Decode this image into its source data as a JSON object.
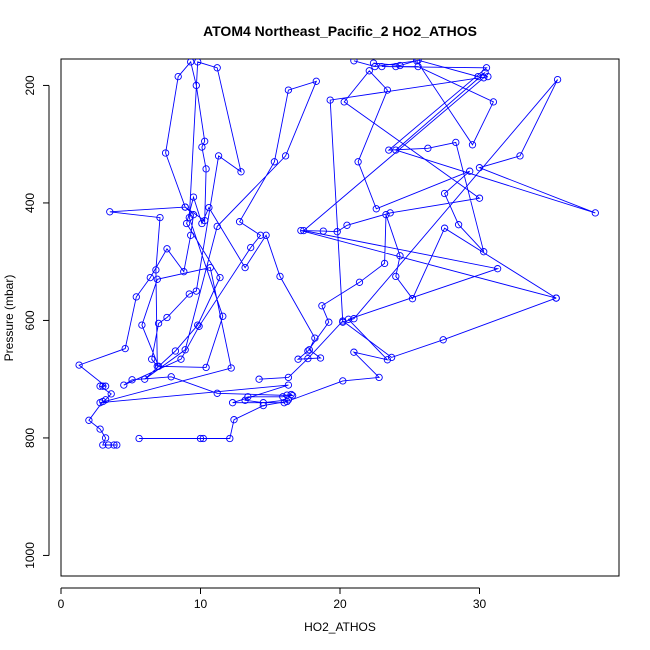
{
  "chart_data": {
    "type": "line",
    "title": "ATOM4 Northeast_Pacific_2 HO2_ATHOS",
    "xlabel": "HO2_ATHOS",
    "ylabel": "Pressure (mbar)",
    "xlim": [
      0,
      40
    ],
    "ylim": [
      1035,
      155
    ],
    "y_reversed": true,
    "x_ticks": [
      0,
      10,
      20,
      30
    ],
    "y_ticks": [
      200,
      400,
      600,
      800,
      1000
    ],
    "marker": "open-circle",
    "series": [
      {
        "color": "#0000ff",
        "points": [
          [
            4.0,
            812
          ],
          [
            3.8,
            812
          ],
          [
            3.4,
            812
          ],
          [
            3.0,
            812
          ],
          [
            3.2,
            800
          ],
          [
            2.8,
            785
          ],
          [
            2.0,
            770
          ],
          [
            3.0,
            738
          ],
          [
            3.2,
            735
          ],
          [
            3.6,
            725
          ],
          [
            2.8,
            712
          ],
          [
            3.0,
            712
          ],
          [
            3.2,
            712
          ],
          [
            1.3,
            676
          ],
          [
            4.6,
            648
          ],
          [
            5.4,
            560
          ],
          [
            6.4,
            527
          ],
          [
            7.6,
            478
          ],
          [
            8.8,
            517
          ],
          [
            9.3,
            455
          ],
          [
            9.5,
            420
          ],
          [
            8.9,
            407
          ],
          [
            7.5,
            315
          ],
          [
            8.4,
            185
          ],
          [
            9.3,
            160
          ],
          [
            9.7,
            200
          ],
          [
            10.3,
            295
          ],
          [
            10.1,
            305
          ],
          [
            10.4,
            342
          ],
          [
            10.3,
            430
          ],
          [
            8.9,
            407
          ],
          [
            3.5,
            415
          ],
          [
            7.1,
            425
          ],
          [
            6.8,
            514
          ],
          [
            6.9,
            678
          ],
          [
            6.5,
            666
          ],
          [
            7.0,
            605
          ],
          [
            7.6,
            595
          ],
          [
            9.2,
            555
          ],
          [
            9.7,
            550
          ],
          [
            11.3,
            320
          ],
          [
            12.9,
            347
          ],
          [
            11.2,
            170
          ],
          [
            9.8,
            160
          ],
          [
            9.2,
            425
          ],
          [
            11.6,
            593
          ],
          [
            10.4,
            680
          ],
          [
            7.0,
            678
          ],
          [
            5.8,
            608
          ],
          [
            6.9,
            530
          ],
          [
            10.7,
            510
          ],
          [
            12.2,
            681
          ],
          [
            2.8,
            740
          ],
          [
            16.3,
            710
          ],
          [
            12.3,
            740
          ],
          [
            16.0,
            740
          ],
          [
            16.3,
            735
          ],
          [
            14.5,
            740
          ],
          [
            13.2,
            736
          ],
          [
            13.4,
            730
          ],
          [
            15.9,
            730
          ],
          [
            16.2,
            727
          ],
          [
            16.5,
            726
          ],
          [
            16.6,
            728
          ],
          [
            11.2,
            724
          ],
          [
            7.9,
            696
          ],
          [
            5.1,
            701
          ],
          [
            4.5,
            710
          ],
          [
            8.6,
            666
          ],
          [
            9.9,
            610
          ],
          [
            13.6,
            476
          ],
          [
            14.3,
            455
          ],
          [
            12.8,
            432
          ],
          [
            15.3,
            330
          ],
          [
            16.3,
            208
          ],
          [
            18.3,
            193
          ],
          [
            16.1,
            320
          ],
          [
            11.2,
            440
          ],
          [
            8.9,
            650
          ],
          [
            6.0,
            700
          ],
          [
            8.2,
            652
          ],
          [
            9.8,
            608
          ],
          [
            11.4,
            527
          ],
          [
            9.0,
            435
          ],
          [
            9.5,
            390
          ],
          [
            10.1,
            435
          ],
          [
            10.6,
            408
          ],
          [
            13.2,
            510
          ],
          [
            14.7,
            455
          ],
          [
            15.7,
            525
          ],
          [
            18.2,
            630
          ],
          [
            17.8,
            650
          ],
          [
            18.6,
            664
          ],
          [
            17.0,
            666
          ],
          [
            17.7,
            652
          ],
          [
            19.2,
            603
          ],
          [
            18.7,
            575
          ],
          [
            21.4,
            535
          ],
          [
            23.2,
            503
          ],
          [
            23.3,
            420
          ],
          [
            24.3,
            490
          ],
          [
            24.0,
            525
          ],
          [
            25.2,
            563
          ],
          [
            27.5,
            443
          ],
          [
            35.5,
            562
          ],
          [
            17.2,
            447
          ],
          [
            18.8,
            448
          ],
          [
            19.8,
            449
          ],
          [
            20.5,
            438
          ],
          [
            23.6,
            417
          ],
          [
            30.0,
            392
          ],
          [
            20.3,
            228
          ],
          [
            22.1,
            175
          ],
          [
            23.4,
            208
          ],
          [
            21.3,
            330
          ],
          [
            22.6,
            410
          ],
          [
            29.3,
            346
          ],
          [
            27.5,
            384
          ],
          [
            28.5,
            437
          ],
          [
            30.3,
            483
          ],
          [
            28.3,
            297
          ],
          [
            26.3,
            307
          ],
          [
            23.5,
            310
          ],
          [
            30.5,
            170
          ],
          [
            23.0,
            168
          ],
          [
            24.0,
            168
          ],
          [
            25.6,
            168
          ],
          [
            31.0,
            228
          ],
          [
            29.5,
            301
          ],
          [
            25.5,
            158
          ],
          [
            22.5,
            168
          ],
          [
            21.0,
            158
          ]
        ]
      },
      {
        "color": "#0000ff",
        "points": [
          [
            5.6,
            801
          ],
          [
            10.0,
            801
          ],
          [
            10.2,
            801
          ],
          [
            12.1,
            801
          ],
          [
            12.4,
            769
          ],
          [
            14.5,
            745
          ],
          [
            16.2,
            738
          ],
          [
            20.2,
            703
          ],
          [
            22.8,
            697
          ],
          [
            21.0,
            654
          ],
          [
            23.4,
            667
          ],
          [
            20.6,
            598
          ],
          [
            31.3,
            512
          ],
          [
            17.4,
            447
          ],
          [
            30.3,
            187
          ],
          [
            30.6,
            185
          ],
          [
            19.3,
            225
          ],
          [
            20.2,
            603
          ],
          [
            21.0,
            597
          ],
          [
            35.6,
            190
          ],
          [
            32.9,
            320
          ],
          [
            30.0,
            340
          ],
          [
            38.3,
            417
          ],
          [
            24.0,
            310
          ],
          [
            30.4,
            178
          ],
          [
            29.9,
            185
          ],
          [
            25.6,
            157
          ],
          [
            24.3,
            166
          ],
          [
            22.4,
            162
          ]
        ]
      },
      {
        "color": "#0000ff",
        "points": [
          [
            14.2,
            700
          ],
          [
            16.3,
            697
          ],
          [
            17.7,
            665
          ],
          [
            20.2,
            601
          ],
          [
            23.7,
            663
          ],
          [
            27.4,
            633
          ],
          [
            35.5,
            562
          ]
        ]
      }
    ]
  }
}
